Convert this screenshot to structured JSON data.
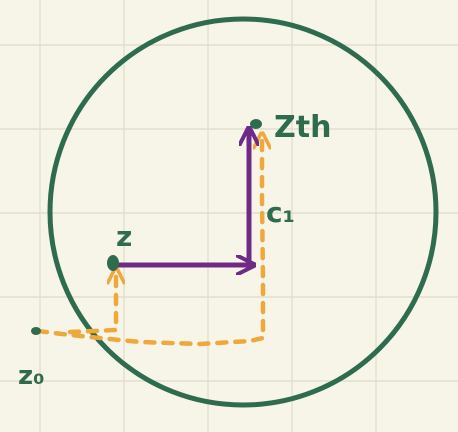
{
  "labels": {
    "z0": "z₀",
    "z": "z",
    "zth": "Zth",
    "c1": "c₁"
  },
  "colors": {
    "background": "#f7f5e8",
    "grid": "#dedbc8",
    "circle": "#2e6b4f",
    "points": "#2e6b4f",
    "solid_arrows": "#6e2a86",
    "dashed_arrows": "#eea83c",
    "label_text": "#2e6b4f"
  }
}
